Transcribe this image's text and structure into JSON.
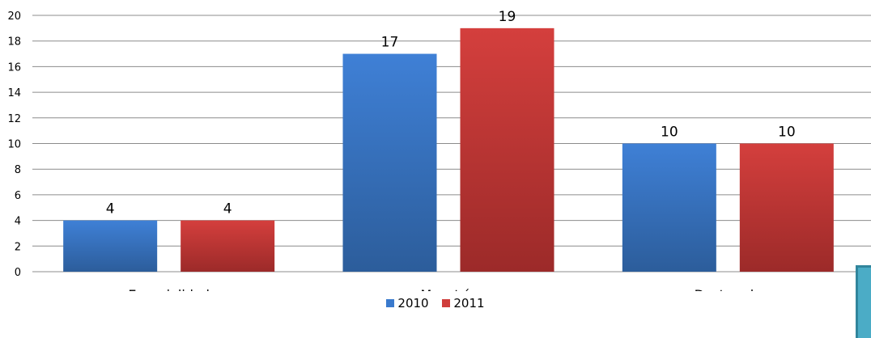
{
  "chart_data": {
    "type": "bar",
    "categories": [
      "Especialidad",
      "Maestría",
      "Doctorado"
    ],
    "series": [
      {
        "name": "2010",
        "values": [
          4,
          17,
          10
        ],
        "color": "#3a7acd"
      },
      {
        "name": "2011",
        "values": [
          4,
          19,
          10
        ],
        "color": "#cf3d3b"
      }
    ],
    "ylim": [
      0,
      20
    ],
    "yticks": [
      0,
      2,
      4,
      6,
      8,
      10,
      12,
      14,
      16,
      18,
      20
    ],
    "grid": true,
    "legend_position": "bottom",
    "data_labels": true
  },
  "legend": {
    "items": [
      {
        "label": "2010",
        "color": "#3a7acd"
      },
      {
        "label": "2011",
        "color": "#cf3d3b"
      }
    ]
  }
}
